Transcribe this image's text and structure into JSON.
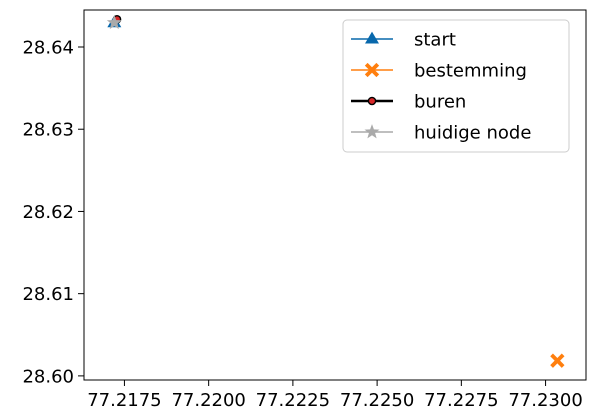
{
  "chart_data": {
    "type": "scatter",
    "xlim": [
      77.2163,
      77.2312
    ],
    "ylim": [
      28.5995,
      28.6445
    ],
    "x_ticks": [
      77.2175,
      77.22,
      77.2225,
      77.225,
      77.2275,
      77.23
    ],
    "x_tick_labels": [
      "77.2175",
      "77.2200",
      "77.2225",
      "77.2250",
      "77.2275",
      "77.2300"
    ],
    "y_ticks": [
      28.6,
      28.61,
      28.62,
      28.63,
      28.64
    ],
    "y_tick_labels": [
      "28.60",
      "28.61",
      "28.62",
      "28.63",
      "28.64"
    ],
    "grid": false,
    "legend_position": "top-right",
    "series": [
      {
        "name": "start",
        "color": "#0868ac",
        "marker": "triangle",
        "points": [
          [
            77.2172,
            28.64295
          ]
        ]
      },
      {
        "name": "bestemming",
        "color": "#ff7f0e",
        "marker": "x-filled",
        "points": [
          [
            77.23035,
            28.60185
          ]
        ]
      },
      {
        "name": "buren",
        "color": "#000000",
        "marker_fill": "#d62728",
        "marker": "circle",
        "points": [
          [
            77.21728,
            28.64337
          ]
        ]
      },
      {
        "name": "huidige node",
        "color": "#aaaaaa",
        "marker": "star",
        "points": [
          [
            77.2172,
            28.64295
          ]
        ]
      }
    ]
  }
}
